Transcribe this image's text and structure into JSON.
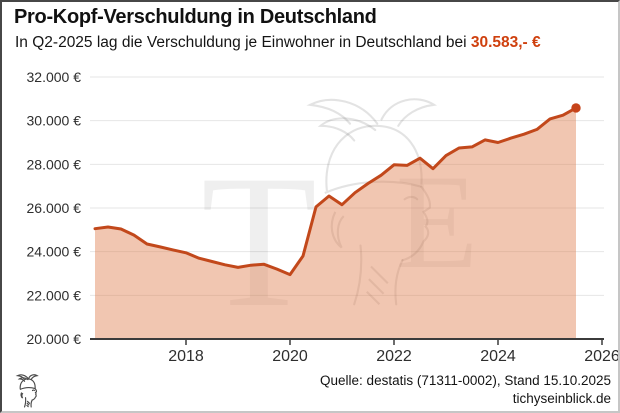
{
  "header": {
    "title": "Pro-Kopf-Verschuldung in Deutschland",
    "subtitle_prefix": "In Q2-2025 lag die Verschuldung je Einwohner in Deutschland bei ",
    "subtitle_highlight": "30.583,- €"
  },
  "footer": {
    "source": "Quelle: destatis (71311-0002), Stand 15.10.2025",
    "website": "tichyseinblick.de"
  },
  "watermark": {
    "letter_left": "T",
    "letter_right": "E",
    "icon": "hermes-head-icon"
  },
  "colors": {
    "accent_text": "#cf400e",
    "line": "#c2481b",
    "marker": "#c6431a",
    "fill": "rgba(224,129,82,0.45)",
    "axis": "#3b3b3b",
    "grid": "#e6e6e6"
  },
  "chart_data": {
    "type": "area",
    "title": "Pro-Kopf-Verschuldung in Deutschland",
    "xlabel": "",
    "ylabel": "",
    "grid": true,
    "legend": false,
    "ylim": [
      20000,
      32000
    ],
    "quarters": [
      "Q1-2016",
      "Q2-2016",
      "Q3-2016",
      "Q4-2016",
      "Q1-2017",
      "Q2-2017",
      "Q3-2017",
      "Q4-2017",
      "Q1-2018",
      "Q2-2018",
      "Q3-2018",
      "Q4-2018",
      "Q1-2019",
      "Q2-2019",
      "Q3-2019",
      "Q4-2019",
      "Q1-2020",
      "Q2-2020",
      "Q3-2020",
      "Q4-2020",
      "Q1-2021",
      "Q2-2021",
      "Q3-2021",
      "Q4-2021",
      "Q1-2022",
      "Q2-2022",
      "Q3-2022",
      "Q4-2022",
      "Q1-2023",
      "Q2-2023",
      "Q3-2023",
      "Q4-2023",
      "Q1-2024",
      "Q2-2024",
      "Q3-2024",
      "Q4-2024",
      "Q1-2025",
      "Q2-2025"
    ],
    "values": [
      25050,
      25130,
      25040,
      24760,
      24350,
      24220,
      24080,
      23950,
      23700,
      23550,
      23400,
      23280,
      23380,
      23420,
      23200,
      22950,
      23800,
      26050,
      26550,
      26150,
      26700,
      27120,
      27500,
      27980,
      27950,
      28280,
      27800,
      28400,
      28750,
      28800,
      29120,
      29000,
      29200,
      29380,
      29600,
      30080,
      30250,
      30583
    ],
    "latest": {
      "quarter": "Q2-2025",
      "value": 30583,
      "label": "30.583,- €"
    },
    "y_ticks": [
      {
        "value": 32000,
        "label": "32.000 €"
      },
      {
        "value": 30000,
        "label": "30.000 €"
      },
      {
        "value": 28000,
        "label": "28.000 €"
      },
      {
        "value": 26000,
        "label": "26.000 €"
      },
      {
        "value": 24000,
        "label": "24.000 €"
      },
      {
        "value": 22000,
        "label": "22.000 €"
      },
      {
        "value": 20000,
        "label": "20.000 €"
      }
    ],
    "x_ticks": [
      {
        "year": 2018,
        "label": "2018"
      },
      {
        "year": 2020,
        "label": "2020"
      },
      {
        "year": 2022,
        "label": "2022"
      },
      {
        "year": 2024,
        "label": "2024"
      },
      {
        "year": 2026,
        "label": "2026"
      }
    ]
  }
}
